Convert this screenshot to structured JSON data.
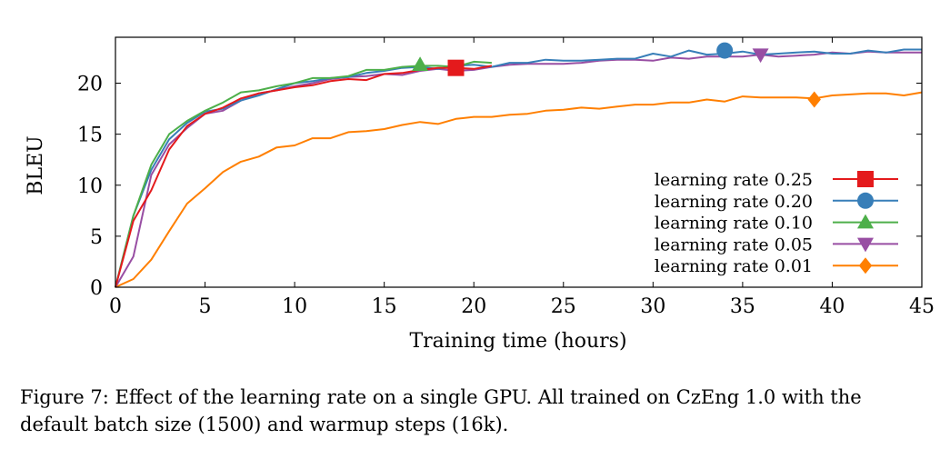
{
  "chart_data": {
    "type": "line",
    "xlabel": "Training time (hours)",
    "ylabel": "BLEU",
    "xlim": [
      0,
      45
    ],
    "ylim": [
      0,
      24.5
    ],
    "xticks": [
      0,
      5,
      10,
      15,
      20,
      25,
      30,
      35,
      40,
      45
    ],
    "yticks": [
      0,
      5,
      10,
      15,
      20
    ],
    "grid": false,
    "legend_position": "lower-right",
    "series": [
      {
        "name": "learning rate 0.25",
        "color": "#e41a1c",
        "marker": "square",
        "marker_point": [
          19,
          21.5
        ],
        "x": [
          0,
          1,
          2,
          3,
          4,
          5,
          6,
          7,
          8,
          9,
          10,
          11,
          12,
          13,
          14,
          15,
          16,
          17,
          18,
          19,
          20,
          21
        ],
        "y": [
          0,
          6.5,
          9.5,
          13.5,
          15.8,
          17.0,
          17.6,
          18.5,
          19.0,
          19.3,
          19.6,
          19.8,
          20.2,
          20.4,
          20.3,
          20.9,
          21.0,
          21.3,
          21.5,
          21.5,
          21.4,
          21.7
        ]
      },
      {
        "name": "learning rate 0.20",
        "color": "#377eb8",
        "marker": "circle",
        "marker_point": [
          34,
          23.2
        ],
        "x": [
          0,
          1,
          2,
          3,
          4,
          5,
          6,
          7,
          8,
          9,
          10,
          11,
          12,
          13,
          14,
          15,
          16,
          17,
          18,
          19,
          20,
          21,
          22,
          23,
          24,
          25,
          26,
          27,
          28,
          29,
          30,
          31,
          32,
          33,
          34,
          35,
          36,
          37,
          38,
          39,
          40,
          41,
          42,
          43,
          44,
          45
        ],
        "y": [
          0,
          7.0,
          11.5,
          14.5,
          16.1,
          17.2,
          17.5,
          18.3,
          18.8,
          19.4,
          20.0,
          20.2,
          20.5,
          20.6,
          21.0,
          21.2,
          21.5,
          21.6,
          21.4,
          21.7,
          21.8,
          21.6,
          22.0,
          22.0,
          22.3,
          22.2,
          22.2,
          22.3,
          22.4,
          22.4,
          22.9,
          22.6,
          23.2,
          22.8,
          22.9,
          23.1,
          22.8,
          22.9,
          23.0,
          23.1,
          22.9,
          22.9,
          23.2,
          23.0,
          23.3,
          23.3
        ]
      },
      {
        "name": "learning rate 0.10",
        "color": "#4daf4a",
        "marker": "triangle-up",
        "marker_point": [
          17,
          21.8
        ],
        "x": [
          0,
          1,
          2,
          3,
          4,
          5,
          6,
          7,
          8,
          9,
          10,
          11,
          12,
          13,
          14,
          15,
          16,
          17,
          18,
          19,
          20,
          21
        ],
        "y": [
          0,
          7.0,
          12.0,
          15.0,
          16.3,
          17.3,
          18.1,
          19.1,
          19.3,
          19.7,
          20.0,
          20.5,
          20.5,
          20.7,
          21.3,
          21.3,
          21.6,
          21.7,
          21.7,
          21.6,
          22.1,
          22.0
        ]
      },
      {
        "name": "learning rate 0.05",
        "color": "#984ea3",
        "marker": "triangle-down",
        "marker_point": [
          36,
          22.8
        ],
        "x": [
          0,
          1,
          2,
          3,
          4,
          5,
          6,
          7,
          8,
          9,
          10,
          11,
          12,
          13,
          14,
          15,
          16,
          17,
          18,
          19,
          20,
          21,
          22,
          23,
          24,
          25,
          26,
          27,
          28,
          29,
          30,
          31,
          32,
          33,
          34,
          35,
          36,
          37,
          38,
          39,
          40,
          41,
          42,
          43,
          44,
          45
        ],
        "y": [
          0,
          3.0,
          11.0,
          14.0,
          15.6,
          17.0,
          17.3,
          18.3,
          19.0,
          19.3,
          19.7,
          20.0,
          20.4,
          20.6,
          20.7,
          20.9,
          20.8,
          21.2,
          21.4,
          21.2,
          21.3,
          21.6,
          21.8,
          21.9,
          21.9,
          21.9,
          22.0,
          22.2,
          22.3,
          22.3,
          22.2,
          22.5,
          22.4,
          22.6,
          22.6,
          22.6,
          22.8,
          22.6,
          22.7,
          22.8,
          23.0,
          22.9,
          23.1,
          23.0,
          23.0,
          23.0
        ]
      },
      {
        "name": "learning rate 0.01",
        "color": "#ff7f00",
        "marker": "diamond",
        "marker_point": [
          39,
          18.4
        ],
        "x": [
          0,
          1,
          2,
          3,
          4,
          5,
          6,
          7,
          8,
          9,
          10,
          11,
          12,
          13,
          14,
          15,
          16,
          17,
          18,
          19,
          20,
          21,
          22,
          23,
          24,
          25,
          26,
          27,
          28,
          29,
          30,
          31,
          32,
          33,
          34,
          35,
          36,
          37,
          38,
          39,
          40,
          41,
          42,
          43,
          44,
          45
        ],
        "y": [
          0,
          0.8,
          2.7,
          5.5,
          8.2,
          9.7,
          11.3,
          12.3,
          12.8,
          13.7,
          13.9,
          14.6,
          14.6,
          15.2,
          15.3,
          15.5,
          15.9,
          16.2,
          16.0,
          16.5,
          16.7,
          16.7,
          16.9,
          17.0,
          17.3,
          17.4,
          17.6,
          17.5,
          17.7,
          17.9,
          17.9,
          18.1,
          18.1,
          18.4,
          18.2,
          18.7,
          18.6,
          18.6,
          18.6,
          18.5,
          18.8,
          18.9,
          19.0,
          19.0,
          18.8,
          19.1
        ]
      }
    ]
  },
  "caption": "Figure 7:  Effect of the learning rate on a single GPU. All trained on CzEng 1.0 with the default batch size (1500) and warmup steps (16k)."
}
